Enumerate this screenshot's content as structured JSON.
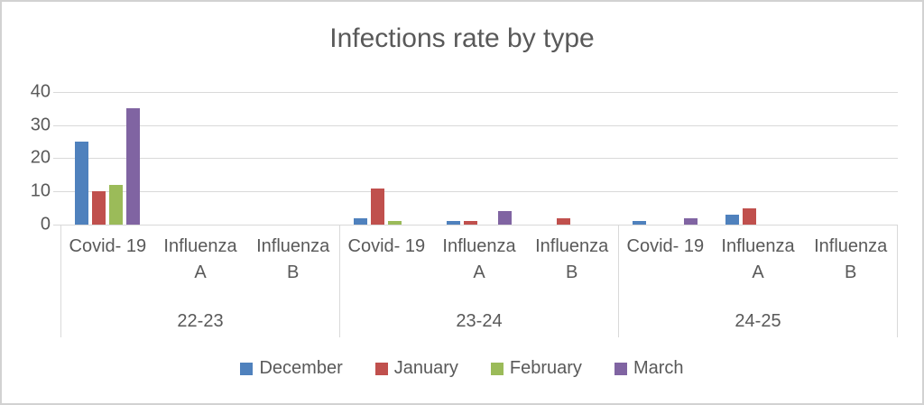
{
  "chart_data": {
    "type": "bar",
    "title": "Infections rate by type",
    "xlabel": "",
    "ylabel": "",
    "ylim": [
      0,
      40
    ],
    "y_ticks": [
      0,
      10,
      20,
      30,
      40
    ],
    "grid": true,
    "legend_position": "bottom",
    "group_labels": [
      "22-23",
      "23-24",
      "24-25"
    ],
    "category_labels": [
      {
        "line1": "Covid- 19",
        "line2": ""
      },
      {
        "line1": "Influenza",
        "line2": "A"
      },
      {
        "line1": "Influenza",
        "line2": "B"
      }
    ],
    "series": [
      {
        "name": "December",
        "color": "#4F81BD",
        "values": [
          [
            25,
            0,
            0
          ],
          [
            2,
            1,
            0
          ],
          [
            1,
            3,
            0
          ]
        ]
      },
      {
        "name": "January",
        "color": "#C0504D",
        "values": [
          [
            10,
            0,
            0
          ],
          [
            11,
            1,
            2
          ],
          [
            0,
            5,
            0
          ]
        ]
      },
      {
        "name": "February",
        "color": "#9BBB59",
        "values": [
          [
            12,
            0,
            0
          ],
          [
            1,
            0,
            0
          ],
          [
            0,
            0,
            0
          ]
        ]
      },
      {
        "name": "March",
        "color": "#8064A2",
        "values": [
          [
            35,
            0,
            0
          ],
          [
            0,
            4,
            0
          ],
          [
            2,
            0,
            0
          ]
        ]
      }
    ],
    "colors": {
      "text": "#595959",
      "gridline": "#D9D9D9",
      "chart_border": "#D2D2D2",
      "background": "#FFFFFF"
    }
  }
}
